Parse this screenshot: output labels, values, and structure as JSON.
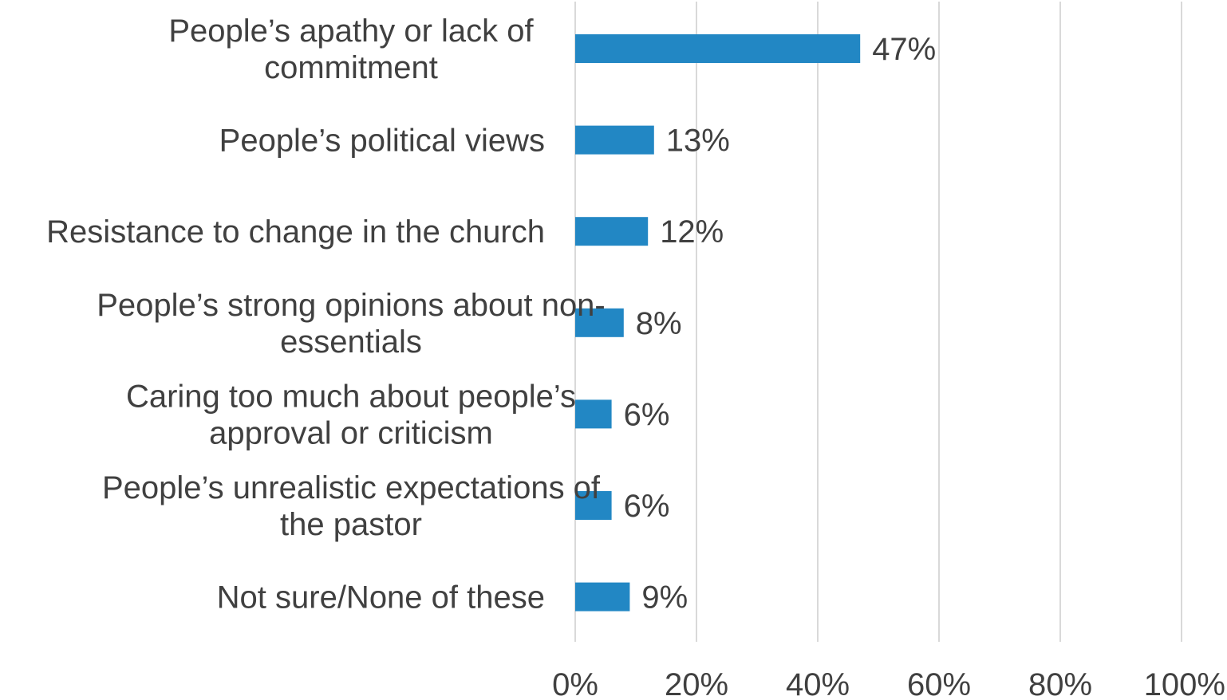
{
  "chart_data": {
    "type": "bar",
    "orientation": "horizontal",
    "categories": [
      "People’s apathy or lack of commitment",
      "People’s political views",
      "Resistance to change in the church",
      "People’s strong opinions about non-essentials",
      "Caring too much about people’s approval or criticism",
      "People’s unrealistic expectations of the pastor",
      "Not sure/None of these"
    ],
    "category_label_lines": [
      [
        "People’s apathy or lack of",
        "commitment"
      ],
      [
        "People’s political views"
      ],
      [
        "Resistance to change in the church"
      ],
      [
        "People’s strong opinions about non-",
        "essentials"
      ],
      [
        "Caring too much about people’s",
        "approval or criticism"
      ],
      [
        "People’s unrealistic expectations of",
        "the pastor"
      ],
      [
        "Not sure/None of these"
      ]
    ],
    "values": [
      47,
      13,
      12,
      8,
      6,
      6,
      9
    ],
    "data_labels": [
      "47%",
      "13%",
      "12%",
      "8%",
      "6%",
      "6%",
      "9%"
    ],
    "xlim": [
      0,
      100
    ],
    "x_ticks": [
      0,
      20,
      40,
      60,
      80,
      100
    ],
    "x_tick_labels": [
      "0%",
      "20%",
      "40%",
      "60%",
      "80%",
      "100%"
    ],
    "grid": "vertical",
    "bar_color": "#2287C4",
    "title": "",
    "xlabel": "",
    "ylabel": ""
  }
}
